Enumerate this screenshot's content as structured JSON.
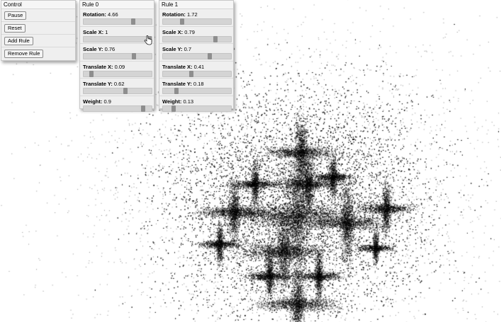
{
  "control": {
    "title": "Control",
    "buttons": [
      "Pause",
      "Reset",
      "Add Rule",
      "Remove Rule"
    ]
  },
  "rules": [
    {
      "title": "Rule 0",
      "params": [
        {
          "label": "Rotation:",
          "value": "4.66",
          "fraction": 0.74
        },
        {
          "label": "Scale X:",
          "value": "1",
          "fraction": 1.0
        },
        {
          "label": "Scale Y:",
          "value": "0.76",
          "fraction": 0.76
        },
        {
          "label": "Translate X:",
          "value": "0.09",
          "fraction": 0.09
        },
        {
          "label": "Translate Y:",
          "value": "0.62",
          "fraction": 0.62
        },
        {
          "label": "Weight:",
          "value": "0.9",
          "fraction": 0.9
        }
      ]
    },
    {
      "title": "Rule 1",
      "params": [
        {
          "label": "Rotation:",
          "value": "1.72",
          "fraction": 0.27
        },
        {
          "label": "Scale X:",
          "value": "0.79",
          "fraction": 0.79
        },
        {
          "label": "Scale Y:",
          "value": "0.7",
          "fraction": 0.7
        },
        {
          "label": "Translate X:",
          "value": "0.41",
          "fraction": 0.41
        },
        {
          "label": "Translate Y:",
          "value": "0.18",
          "fraction": 0.18
        },
        {
          "label": "Weight:",
          "value": "0.13",
          "fraction": 0.13
        }
      ]
    }
  ],
  "colors": {
    "background": "#ffffff",
    "points": "#000000",
    "panel": "#efefef",
    "slider_track": "#d4d4d4",
    "slider_thumb": "#8e8e8e"
  },
  "icons": {
    "cursor": "hand-pointer-icon"
  }
}
